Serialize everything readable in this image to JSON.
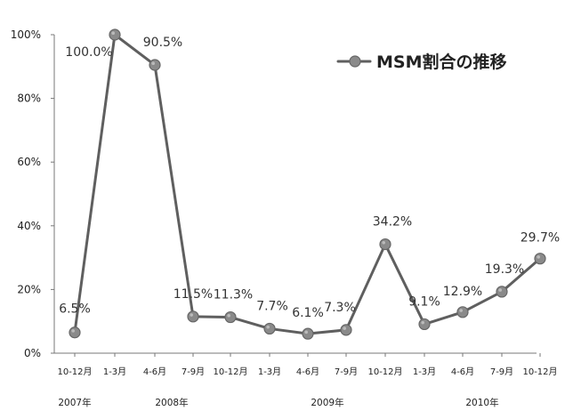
{
  "chart_data": {
    "type": "line",
    "title": "",
    "xlabel": "",
    "ylabel": "",
    "ylim": [
      0,
      100
    ],
    "y_ticks": [
      "0%",
      "20%",
      "40%",
      "60%",
      "80%",
      "100%"
    ],
    "categories": [
      "10-12月",
      "1-3月",
      "4-6月",
      "7-9月",
      "10-12月",
      "1-3月",
      "4-6月",
      "7-9月",
      "10-12月",
      "1-3月",
      "4-6月",
      "7-9月",
      "10-12月"
    ],
    "year_groups": [
      "2007年",
      "2008年",
      "2009年",
      "2010年"
    ],
    "grid": false,
    "legend_position": "top-right",
    "series": [
      {
        "name": "MSM割合の推移",
        "values": [
          6.5,
          100.0,
          90.5,
          11.5,
          11.3,
          7.7,
          6.1,
          7.3,
          34.2,
          9.1,
          12.9,
          19.3,
          29.7
        ],
        "labels": [
          "6.5%",
          "100.0%",
          "90.5%",
          "11.5%",
          "11.3%",
          "7.7%",
          "6.1%",
          "7.3%",
          "34.2%",
          "9.1%",
          "12.9%",
          "19.3%",
          "29.7%"
        ],
        "line_color": "#5f5f5f",
        "marker_color": "#8a8a8a"
      }
    ]
  }
}
